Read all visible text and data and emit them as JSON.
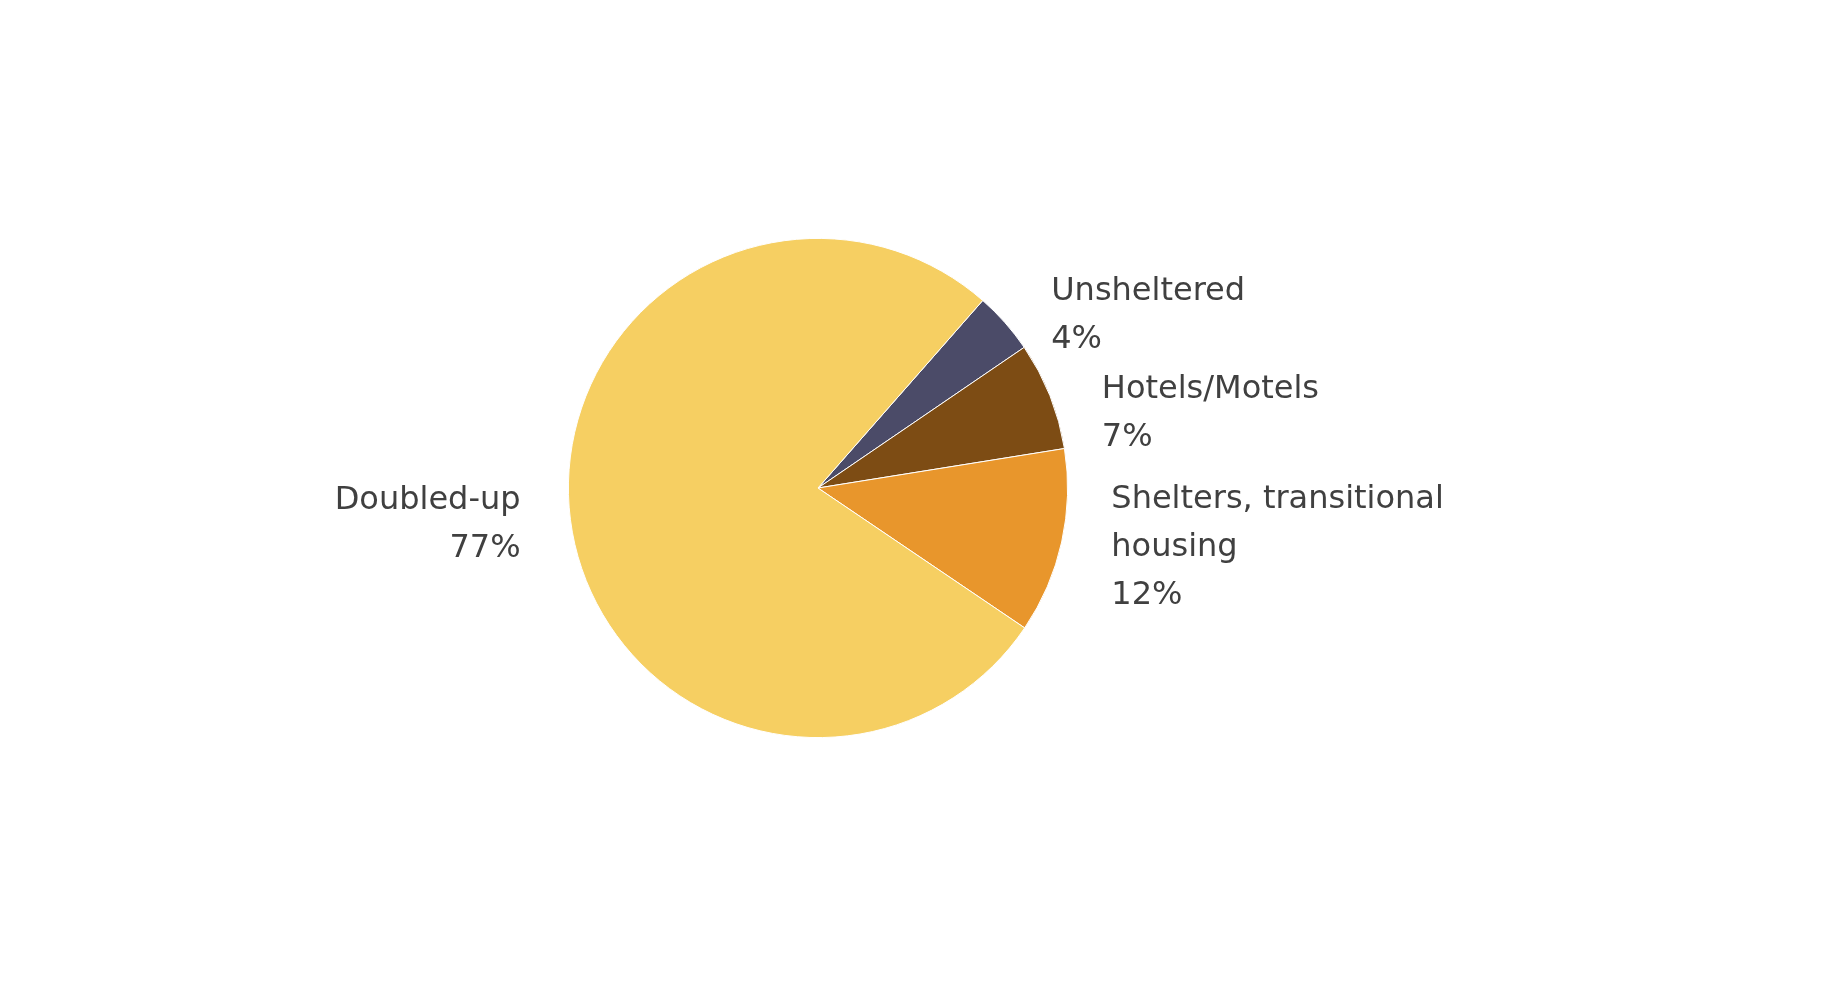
{
  "chart_data": {
    "type": "pie",
    "categories": [
      "Unsheltered",
      "Hotels/Motels",
      "Shelters, transitional housing",
      "Doubled-up"
    ],
    "values": [
      4,
      7,
      12,
      77
    ],
    "value_labels": [
      "4%",
      "7%",
      "12%",
      "77%"
    ],
    "colors": [
      "#4b4b68",
      "#7d4c14",
      "#e8962c",
      "#f6cf62"
    ],
    "legend": false
  }
}
